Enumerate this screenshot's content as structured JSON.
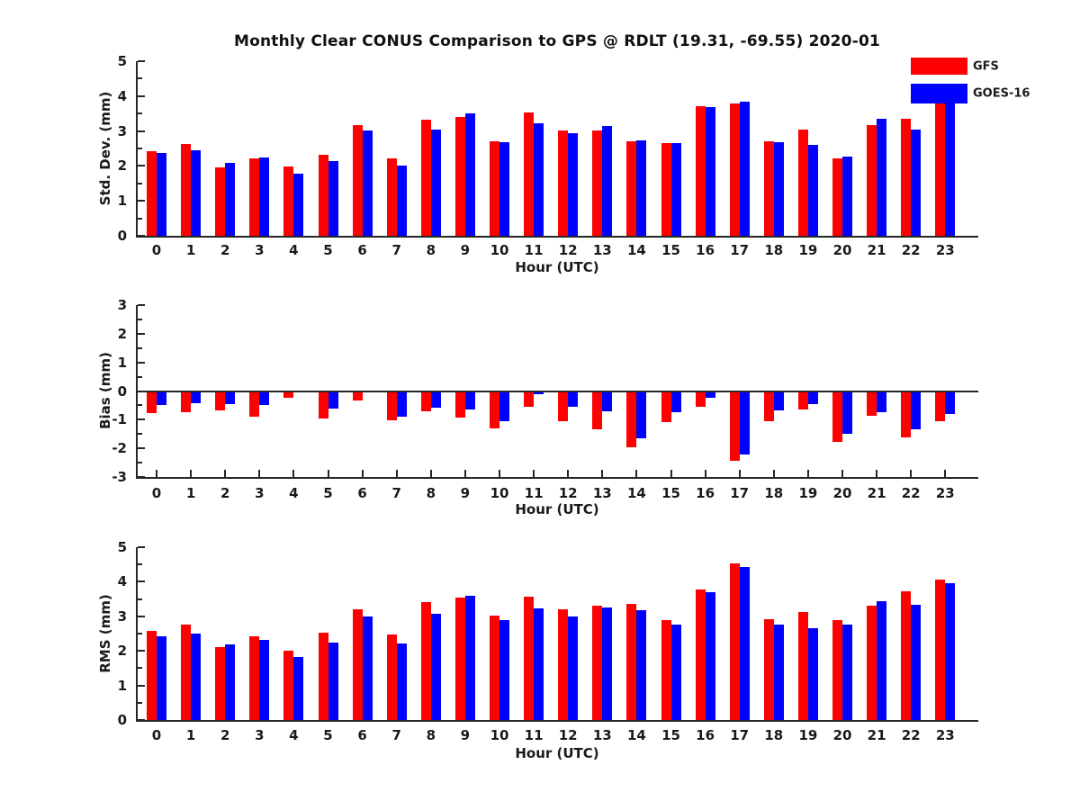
{
  "title": "Monthly Clear CONUS Comparison to GPS @ RDLT (19.31, -69.55) 2020-01",
  "legend": [
    {
      "label": "GFS",
      "color": "#ff0000"
    },
    {
      "label": "GOES-16",
      "color": "#0000ff"
    }
  ],
  "colors": {
    "gfs_red": "#ff0000",
    "goes_blue": "#0000ff",
    "axis": "#262626",
    "text": "#1a1a1a"
  },
  "chart_data": [
    {
      "type": "bar",
      "panel": "std-dev",
      "ylabel": "Std. Dev. (mm)",
      "xlabel": "Hour (UTC)",
      "ylim": [
        0,
        5
      ],
      "yticks": [
        0,
        1,
        2,
        3,
        4,
        5
      ],
      "grid": false,
      "legend_position": "top-right",
      "categories": [
        "0",
        "1",
        "2",
        "3",
        "4",
        "5",
        "6",
        "7",
        "8",
        "9",
        "10",
        "11",
        "12",
        "13",
        "14",
        "15",
        "16",
        "17",
        "18",
        "19",
        "20",
        "21",
        "22",
        "23"
      ],
      "series": [
        {
          "name": "GFS",
          "color": "#ff0000",
          "values": [
            2.42,
            2.62,
            1.95,
            2.21,
            1.98,
            2.31,
            3.18,
            2.21,
            3.32,
            3.41,
            2.71,
            3.53,
            3.02,
            3.02,
            2.7,
            2.66,
            3.7,
            3.79,
            2.71,
            3.04,
            2.22,
            3.16,
            3.35,
            3.85
          ]
        },
        {
          "name": "GOES-16",
          "color": "#0000ff",
          "values": [
            2.37,
            2.45,
            2.1,
            2.24,
            1.79,
            2.14,
            3.01,
            2.0,
            3.03,
            3.51,
            2.67,
            3.21,
            2.95,
            3.15,
            2.74,
            2.65,
            3.68,
            3.85,
            2.68,
            2.61,
            2.27,
            3.34,
            3.05,
            3.95
          ]
        }
      ]
    },
    {
      "type": "bar",
      "panel": "bias",
      "ylabel": "Bias (mm)",
      "xlabel": "Hour (UTC)",
      "ylim": [
        -3,
        3
      ],
      "yticks": [
        -3,
        -2,
        -1,
        0,
        1,
        2,
        3
      ],
      "grid": false,
      "zero_line": true,
      "categories": [
        "0",
        "1",
        "2",
        "3",
        "4",
        "5",
        "6",
        "7",
        "8",
        "9",
        "10",
        "11",
        "12",
        "13",
        "14",
        "15",
        "16",
        "17",
        "18",
        "19",
        "20",
        "21",
        "22",
        "23"
      ],
      "series": [
        {
          "name": "GFS",
          "color": "#ff0000",
          "values": [
            -0.78,
            -0.73,
            -0.68,
            -0.9,
            -0.22,
            -0.95,
            -0.32,
            -1.02,
            -0.72,
            -0.92,
            -1.3,
            -0.54,
            -1.05,
            -1.32,
            -1.95,
            -1.08,
            -0.55,
            -2.42,
            -1.05,
            -0.63,
            -1.78,
            -0.87,
            -1.63,
            -1.05
          ]
        },
        {
          "name": "GOES-16",
          "color": "#0000ff",
          "values": [
            -0.5,
            -0.43,
            -0.46,
            -0.5,
            -0.04,
            -0.62,
            -0.05,
            -0.88,
            -0.57,
            -0.64,
            -1.04,
            -0.1,
            -0.55,
            -0.72,
            -1.65,
            -0.75,
            -0.25,
            -2.2,
            -0.66,
            -0.45,
            -1.48,
            -0.73,
            -1.33,
            -0.8
          ]
        }
      ]
    },
    {
      "type": "bar",
      "panel": "rms",
      "ylabel": "RMS (mm)",
      "xlabel": "Hour (UTC)",
      "ylim": [
        0,
        5
      ],
      "yticks": [
        0,
        1,
        2,
        3,
        4,
        5
      ],
      "grid": false,
      "categories": [
        "0",
        "1",
        "2",
        "3",
        "4",
        "5",
        "6",
        "7",
        "8",
        "9",
        "10",
        "11",
        "12",
        "13",
        "14",
        "15",
        "16",
        "17",
        "18",
        "19",
        "20",
        "21",
        "22",
        "23"
      ],
      "series": [
        {
          "name": "GFS",
          "color": "#ff0000",
          "values": [
            2.57,
            2.75,
            2.1,
            2.41,
            2.01,
            2.52,
            3.21,
            2.48,
            3.42,
            3.55,
            3.03,
            3.58,
            3.21,
            3.32,
            3.36,
            2.88,
            3.78,
            4.53,
            2.92,
            3.12,
            2.88,
            3.3,
            3.72,
            4.06
          ]
        },
        {
          "name": "GOES-16",
          "color": "#0000ff",
          "values": [
            2.42,
            2.5,
            2.19,
            2.31,
            1.82,
            2.25,
            3.0,
            2.22,
            3.07,
            3.59,
            2.88,
            3.22,
            3.0,
            3.26,
            3.18,
            2.76,
            3.7,
            4.42,
            2.76,
            2.66,
            2.75,
            3.43,
            3.34,
            3.95
          ]
        }
      ]
    }
  ]
}
